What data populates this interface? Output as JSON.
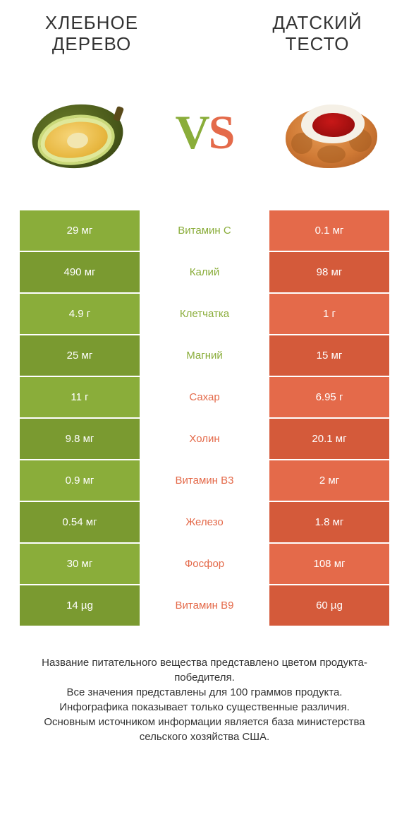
{
  "colors": {
    "green": "#8aad3a",
    "orange": "#e46a4a",
    "green_dark": "#7a9a30",
    "orange_dark": "#d45a3a"
  },
  "left_title": "ХЛЕБНОЕ ДЕРЕВО",
  "right_title": "ДАТСКИЙ ТЕСТО",
  "vs_v": "V",
  "vs_s": "S",
  "rows": [
    {
      "left": "29 мг",
      "mid": "Витамин C",
      "right": "0.1 мг",
      "winner": "left"
    },
    {
      "left": "490 мг",
      "mid": "Калий",
      "right": "98 мг",
      "winner": "left"
    },
    {
      "left": "4.9 г",
      "mid": "Клетчатка",
      "right": "1 г",
      "winner": "left"
    },
    {
      "left": "25 мг",
      "mid": "Магний",
      "right": "15 мг",
      "winner": "left"
    },
    {
      "left": "11 г",
      "mid": "Сахар",
      "right": "6.95 г",
      "winner": "right"
    },
    {
      "left": "9.8 мг",
      "mid": "Холин",
      "right": "20.1 мг",
      "winner": "right"
    },
    {
      "left": "0.9 мг",
      "mid": "Витамин B3",
      "right": "2 мг",
      "winner": "right"
    },
    {
      "left": "0.54 мг",
      "mid": "Железо",
      "right": "1.8 мг",
      "winner": "right"
    },
    {
      "left": "30 мг",
      "mid": "Фосфор",
      "right": "108 мг",
      "winner": "right"
    },
    {
      "left": "14 µg",
      "mid": "Витамин B9",
      "right": "60 µg",
      "winner": "right"
    }
  ],
  "footer_lines": [
    "Название питательного вещества представлено цветом продукта-победителя.",
    "Все значения представлены для 100 граммов продукта.",
    "Инфографика показывает только существенные различия.",
    "Основным источником информации является база министерства сельского хозяйства США."
  ]
}
